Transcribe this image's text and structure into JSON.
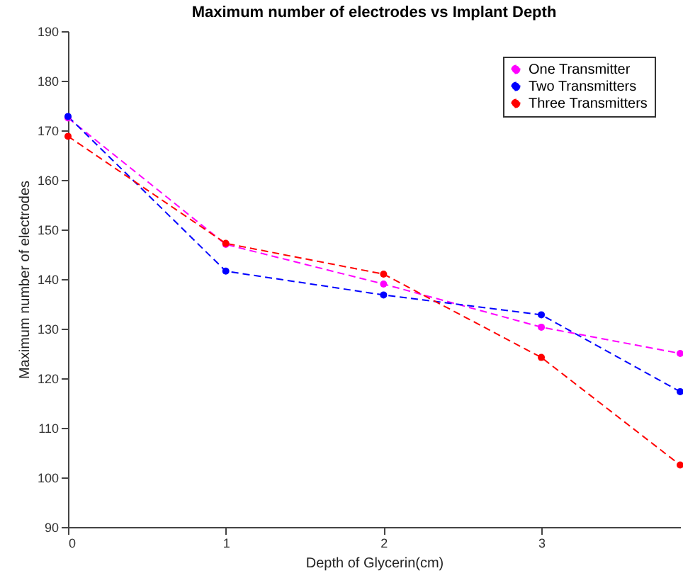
{
  "chart_data": {
    "type": "line",
    "title": "Maximum number of electrodes vs Implant Depth",
    "xlabel": "Depth of Glycerin(cm)",
    "ylabel": "Maximum number of electrodes",
    "xlim": [
      0,
      3.88
    ],
    "xticks": [
      0,
      1,
      2,
      3
    ],
    "ylim": [
      90,
      190
    ],
    "yticks": [
      90,
      100,
      110,
      120,
      130,
      140,
      150,
      160,
      170,
      180,
      190
    ],
    "grid": false,
    "legend": "top right",
    "marker": "circle",
    "line_style": "dashed",
    "series": [
      {
        "name": "One Transmitter",
        "color": "#ff00ff",
        "x": [
          0,
          1,
          2,
          3,
          3.88
        ],
        "values": [
          172.5,
          147,
          139,
          130.3,
          125
        ]
      },
      {
        "name": "Two Transmitters",
        "color": "#0000ff",
        "x": [
          0,
          1,
          2,
          3,
          3.88
        ],
        "values": [
          172.8,
          141.6,
          136.8,
          132.8,
          117.3
        ]
      },
      {
        "name": "Three Transmitters",
        "color": "#ff0000",
        "x": [
          0,
          1,
          2,
          3,
          3.88
        ],
        "values": [
          168.8,
          147.2,
          141,
          124.2,
          102.5
        ]
      }
    ]
  }
}
